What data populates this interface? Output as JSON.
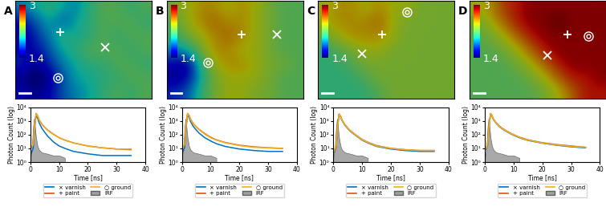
{
  "chart_data": [
    {
      "type": "heatmap",
      "title": "A",
      "tick_labels": false,
      "clim": [
        1.4,
        3
      ],
      "cticks": [
        1.4,
        3
      ],
      "cells": [
        [
          1.9,
          2.0,
          2.1,
          2.0,
          1.9,
          2.1,
          2.2,
          2.2,
          2.1,
          2.2
        ],
        [
          1.6,
          1.8,
          2.0,
          1.8,
          2.0,
          2.1,
          2.2,
          2.2,
          2.2,
          2.1
        ],
        [
          1.5,
          1.7,
          1.9,
          2.1,
          2.0,
          2.1,
          2.2,
          2.1,
          2.2,
          2.2
        ],
        [
          1.6,
          1.6,
          1.8,
          2.0,
          2.1,
          2.2,
          2.2,
          2.2,
          2.1,
          2.2
        ],
        [
          1.7,
          1.5,
          1.7,
          1.9,
          2.0,
          2.1,
          2.1,
          2.2,
          2.2,
          2.1
        ],
        [
          1.5,
          1.4,
          1.5,
          1.8,
          2.0,
          2.0,
          2.1,
          2.1,
          2.2,
          2.2
        ],
        [
          1.6,
          1.5,
          1.6,
          1.8,
          1.9,
          2.0,
          2.1,
          2.2,
          2.1,
          2.2
        ]
      ],
      "markers": [
        {
          "marker": "+",
          "x": 3.3,
          "y": 2.2
        },
        {
          "marker": "x",
          "x": 6.6,
          "y": 3.3
        },
        {
          "marker": "o",
          "x": 3.1,
          "y": 5.5
        }
      ]
    },
    {
      "type": "line",
      "xlabel": "Time [ns]",
      "ylabel": "Photon Count (log)",
      "log": "y",
      "grid": false,
      "legend": "below",
      "xlim": [
        0,
        40
      ],
      "xticks": [
        0,
        10,
        20,
        30,
        40
      ],
      "ylim": [
        1,
        10000
      ],
      "yticks": [
        {
          "value": 1,
          "label": "10⁰"
        },
        {
          "value": 10,
          "label": "10¹"
        },
        {
          "value": 100,
          "label": "10²"
        },
        {
          "value": 1000,
          "label": "10³"
        },
        {
          "value": 10000,
          "label": "10⁴"
        }
      ],
      "x": [
        0,
        1,
        1.5,
        2,
        2.5,
        3,
        4,
        5,
        6,
        8,
        10,
        12,
        15,
        20,
        25,
        30,
        35
      ],
      "series": [
        {
          "name": "× varnish",
          "color": "#0072bd",
          "values": [
            3,
            10,
            300,
            2500,
            1700,
            800,
            300,
            150,
            80,
            30,
            15,
            10,
            6,
            4,
            3,
            3,
            3
          ]
        },
        {
          "name": "+ paint",
          "color": "#d95319",
          "values": [
            8,
            20,
            500,
            3500,
            2500,
            1300,
            600,
            350,
            220,
            110,
            60,
            40,
            25,
            15,
            11,
            9,
            8
          ]
        },
        {
          "name": "○ ground",
          "color": "#edb120",
          "values": [
            8,
            20,
            450,
            3300,
            2400,
            1250,
            580,
            340,
            210,
            105,
            60,
            40,
            25,
            15,
            11,
            9,
            9
          ]
        },
        {
          "name": "IRF",
          "type": "area",
          "color": "#a0a0a0",
          "x": [
            0,
            0.5,
            1,
            1.3,
            1.6,
            2,
            2.5,
            3,
            4,
            6,
            8,
            10,
            12
          ],
          "values": [
            2,
            8,
            400,
            1500,
            400,
            60,
            15,
            8,
            5,
            4,
            3,
            3,
            2
          ]
        }
      ]
    },
    {
      "type": "heatmap",
      "title": "B",
      "tick_labels": false,
      "clim": [
        1.4,
        3
      ],
      "cticks": [
        1.4,
        3
      ],
      "cells": [
        [
          2.3,
          2.4,
          2.5,
          2.5,
          2.4,
          2.5,
          2.4,
          2.3,
          2.2,
          2.2
        ],
        [
          2.2,
          2.4,
          2.5,
          2.6,
          2.5,
          2.5,
          2.4,
          2.3,
          2.2,
          2.2
        ],
        [
          2.1,
          2.3,
          2.4,
          2.5,
          2.6,
          2.5,
          2.4,
          2.3,
          2.2,
          2.2
        ],
        [
          1.9,
          2.0,
          2.3,
          2.5,
          2.5,
          2.4,
          2.4,
          2.3,
          2.2,
          2.2
        ],
        [
          1.6,
          1.5,
          2.1,
          2.4,
          2.5,
          2.5,
          2.4,
          2.3,
          2.3,
          2.2
        ],
        [
          1.5,
          1.6,
          2.0,
          2.3,
          2.4,
          2.4,
          2.4,
          2.3,
          2.2,
          2.2
        ],
        [
          1.7,
          1.8,
          2.1,
          2.3,
          2.4,
          2.4,
          2.3,
          2.3,
          2.2,
          2.2
        ]
      ],
      "markers": [
        {
          "marker": "+",
          "x": 5.5,
          "y": 2.4
        },
        {
          "marker": "x",
          "x": 8.1,
          "y": 2.4
        },
        {
          "marker": "o",
          "x": 3.0,
          "y": 4.4
        }
      ]
    },
    {
      "type": "line",
      "xlabel": "Time [ns]",
      "ylabel": "Photon Count (log)",
      "log": "y",
      "grid": false,
      "legend": "below",
      "xlim": [
        0,
        40
      ],
      "xticks": [
        0,
        10,
        20,
        30,
        40
      ],
      "ylim": [
        1,
        10000
      ],
      "yticks": [
        {
          "value": 1,
          "label": "10⁰"
        },
        {
          "value": 10,
          "label": "10¹"
        },
        {
          "value": 100,
          "label": "10²"
        },
        {
          "value": 1000,
          "label": "10³"
        },
        {
          "value": 10000,
          "label": "10⁴"
        }
      ],
      "x": [
        0,
        1,
        1.5,
        2,
        2.5,
        3,
        4,
        5,
        6,
        8,
        10,
        12,
        15,
        20,
        25,
        30,
        35
      ],
      "series": [
        {
          "name": "× varnish",
          "color": "#0072bd",
          "values": [
            4,
            12,
            350,
            2800,
            1900,
            950,
            400,
            220,
            130,
            60,
            35,
            22,
            14,
            9,
            7,
            6,
            6
          ]
        },
        {
          "name": "+ paint",
          "color": "#d95319",
          "values": [
            8,
            20,
            500,
            3600,
            2600,
            1400,
            650,
            380,
            240,
            120,
            65,
            42,
            27,
            17,
            13,
            11,
            10
          ]
        },
        {
          "name": "○ ground",
          "color": "#edb120",
          "values": [
            8,
            20,
            480,
            3500,
            2500,
            1300,
            620,
            360,
            225,
            110,
            60,
            40,
            26,
            16,
            12,
            11,
            10
          ]
        },
        {
          "name": "IRF",
          "type": "area",
          "color": "#a0a0a0",
          "x": [
            0,
            0.5,
            1,
            1.3,
            1.6,
            2,
            2.5,
            3,
            4,
            6,
            8,
            10,
            12
          ],
          "values": [
            2,
            8,
            400,
            1500,
            400,
            60,
            15,
            8,
            5,
            4,
            3,
            3,
            2
          ]
        }
      ]
    },
    {
      "type": "heatmap",
      "title": "C",
      "tick_labels": false,
      "clim": [
        1.4,
        3
      ],
      "cticks": [
        1.4,
        3
      ],
      "cells": [
        [
          2.4,
          2.5,
          2.5,
          2.4,
          2.5,
          2.4,
          2.4,
          2.3,
          2.3,
          2.3
        ],
        [
          2.4,
          2.5,
          2.5,
          2.5,
          2.6,
          2.4,
          2.3,
          2.3,
          2.3,
          2.3
        ],
        [
          2.3,
          2.4,
          2.5,
          2.5,
          2.5,
          2.4,
          2.3,
          2.3,
          2.3,
          2.3
        ],
        [
          2.1,
          2.2,
          2.3,
          2.4,
          2.4,
          2.3,
          2.3,
          2.3,
          2.3,
          2.3
        ],
        [
          2.1,
          2.1,
          2.2,
          2.3,
          2.3,
          2.3,
          2.3,
          2.3,
          2.3,
          2.3
        ],
        [
          2.1,
          2.1,
          2.1,
          2.2,
          2.3,
          2.3,
          2.3,
          2.3,
          2.3,
          2.3
        ],
        [
          2.1,
          2.1,
          2.1,
          2.1,
          2.2,
          2.3,
          2.3,
          2.3,
          2.3,
          2.3
        ]
      ],
      "markers": [
        {
          "marker": "o",
          "x": 6.5,
          "y": 0.8
        },
        {
          "marker": "+",
          "x": 4.7,
          "y": 2.4
        },
        {
          "marker": "x",
          "x": 3.2,
          "y": 3.8
        }
      ]
    },
    {
      "type": "line",
      "xlabel": "Time [ns]",
      "ylabel": "Photon Count (log)",
      "log": "y",
      "grid": false,
      "legend": "below",
      "xlim": [
        0,
        40
      ],
      "xticks": [
        0,
        10,
        20,
        30,
        40
      ],
      "ylim": [
        1,
        10000
      ],
      "yticks": [
        {
          "value": 1,
          "label": "10⁰"
        },
        {
          "value": 10,
          "label": "10¹"
        },
        {
          "value": 100,
          "label": "10²"
        },
        {
          "value": 1000,
          "label": "10³"
        },
        {
          "value": 10000,
          "label": "10⁴"
        }
      ],
      "x": [
        0,
        1,
        1.5,
        2,
        2.5,
        3,
        4,
        5,
        6,
        8,
        10,
        12,
        15,
        20,
        25,
        30,
        35
      ],
      "series": [
        {
          "name": "× varnish",
          "color": "#0072bd",
          "values": [
            4,
            12,
            400,
            3000,
            2100,
            1100,
            500,
            280,
            170,
            80,
            40,
            25,
            14,
            9,
            7,
            6,
            6
          ]
        },
        {
          "name": "+ paint",
          "color": "#d95319",
          "values": [
            5,
            15,
            450,
            3300,
            2300,
            1200,
            560,
            310,
            190,
            90,
            45,
            28,
            16,
            10,
            8,
            7,
            7
          ]
        },
        {
          "name": "○ ground",
          "color": "#edb120",
          "values": [
            5,
            14,
            430,
            3200,
            2200,
            1150,
            540,
            300,
            180,
            85,
            43,
            27,
            15,
            10,
            8,
            7,
            7
          ]
        },
        {
          "name": "IRF",
          "type": "area",
          "color": "#a0a0a0",
          "x": [
            0,
            0.5,
            1,
            1.3,
            1.6,
            2,
            2.5,
            3,
            4,
            6,
            8,
            10,
            12
          ],
          "values": [
            2,
            8,
            400,
            1500,
            400,
            60,
            15,
            8,
            5,
            4,
            3,
            3,
            2
          ]
        }
      ]
    },
    {
      "type": "heatmap",
      "title": "D",
      "tick_labels": false,
      "clim": [
        1.4,
        3
      ],
      "cticks": [
        1.4,
        3
      ],
      "cells": [
        [
          2.4,
          2.5,
          2.7,
          2.8,
          2.9,
          2.9,
          2.9,
          2.9,
          2.9,
          2.9
        ],
        [
          2.3,
          2.4,
          2.6,
          2.8,
          2.9,
          2.9,
          3.0,
          2.9,
          2.9,
          2.9
        ],
        [
          2.2,
          2.3,
          2.4,
          2.6,
          2.8,
          2.9,
          2.9,
          2.9,
          2.9,
          2.9
        ],
        [
          2.2,
          2.2,
          2.3,
          2.4,
          2.6,
          2.8,
          2.9,
          2.9,
          2.9,
          2.9
        ],
        [
          2.2,
          2.2,
          2.2,
          2.3,
          2.4,
          2.6,
          2.8,
          2.9,
          2.9,
          2.9
        ],
        [
          2.2,
          2.2,
          2.2,
          2.2,
          2.3,
          2.4,
          2.6,
          2.8,
          2.8,
          2.9
        ],
        [
          2.2,
          2.2,
          2.2,
          2.2,
          2.2,
          2.3,
          2.4,
          2.6,
          2.8,
          2.8
        ]
      ],
      "markers": [
        {
          "marker": "+",
          "x": 7.2,
          "y": 2.4
        },
        {
          "marker": "o",
          "x": 8.7,
          "y": 2.5
        },
        {
          "marker": "x",
          "x": 5.7,
          "y": 3.9
        }
      ]
    },
    {
      "type": "line",
      "xlabel": "Time [ns]",
      "ylabel": "Photon Count (log)",
      "log": "y",
      "grid": false,
      "legend": "below",
      "xlim": [
        0,
        40
      ],
      "xticks": [
        0,
        10,
        20,
        30,
        40
      ],
      "ylim": [
        1,
        10000
      ],
      "yticks": [
        {
          "value": 1,
          "label": "10⁰"
        },
        {
          "value": 10,
          "label": "10¹"
        },
        {
          "value": 100,
          "label": "10²"
        },
        {
          "value": 1000,
          "label": "10³"
        },
        {
          "value": 10000,
          "label": "10⁴"
        }
      ],
      "x": [
        0,
        1,
        1.5,
        2,
        2.5,
        3,
        4,
        5,
        6,
        8,
        10,
        12,
        15,
        20,
        25,
        30,
        35
      ],
      "series": [
        {
          "name": "× varnish",
          "color": "#0072bd",
          "values": [
            6,
            18,
            450,
            3300,
            2400,
            1300,
            650,
            400,
            270,
            150,
            90,
            60,
            38,
            24,
            17,
            13,
            11
          ]
        },
        {
          "name": "+ paint",
          "color": "#d95319",
          "values": [
            7,
            20,
            480,
            3500,
            2500,
            1400,
            700,
            440,
            300,
            165,
            100,
            66,
            42,
            26,
            19,
            15,
            12
          ]
        },
        {
          "name": "○ ground",
          "color": "#edb120",
          "values": [
            7,
            20,
            470,
            3400,
            2450,
            1350,
            680,
            420,
            285,
            158,
            95,
            63,
            40,
            25,
            18,
            14,
            12
          ]
        },
        {
          "name": "IRF",
          "type": "area",
          "color": "#a0a0a0",
          "x": [
            0,
            0.5,
            1,
            1.3,
            1.6,
            2,
            2.5,
            3,
            4,
            6,
            8,
            10,
            12
          ],
          "values": [
            2,
            8,
            400,
            1500,
            400,
            60,
            15,
            8,
            5,
            4,
            3,
            3,
            2
          ]
        }
      ]
    }
  ]
}
